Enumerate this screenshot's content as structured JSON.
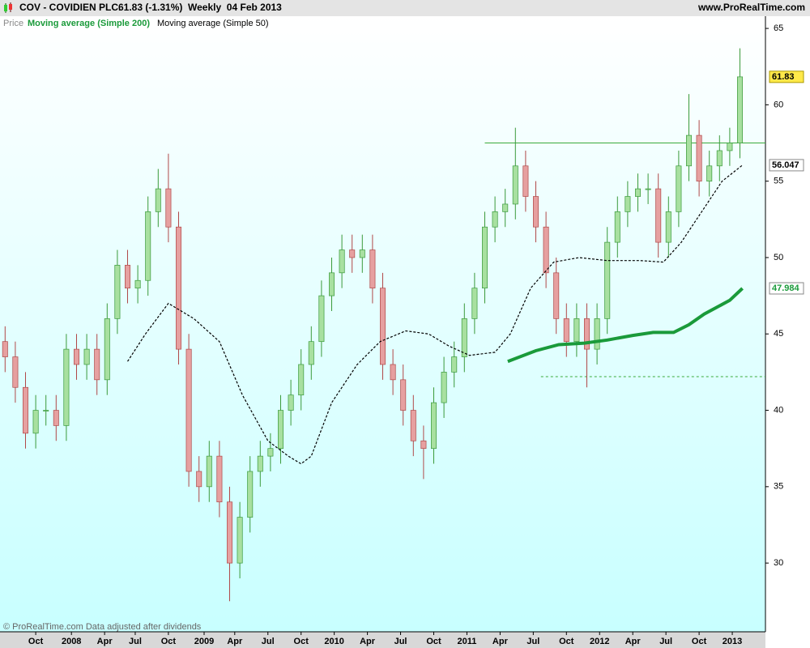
{
  "chart_data": {
    "type": "candlestick",
    "symbol": "COV - COVIDIEN PLC.",
    "quote": "61.83 (-1.31%)",
    "period": "Weekly  04 Feb 2013",
    "site": "www.ProRealTime.com",
    "price_label": "Price",
    "footer": "© ProRealTime.com Data adjusted after dividends",
    "up_color": "#a8e0a0",
    "down_color": "#e6a0a0",
    "up_edge": "#3a9a3a",
    "down_edge": "#b04848",
    "xlim": [
      0,
      300
    ],
    "ylim": [
      25.5,
      65.8
    ],
    "yticks": [
      30,
      35,
      40,
      45,
      50,
      55,
      60,
      65
    ],
    "xticks": [
      {
        "value": 14,
        "label": "Oct"
      },
      {
        "value": 28,
        "label": "2008"
      },
      {
        "value": 41,
        "label": "Apr"
      },
      {
        "value": 53,
        "label": "Jul"
      },
      {
        "value": 66,
        "label": "Oct"
      },
      {
        "value": 80,
        "label": "2009"
      },
      {
        "value": 92,
        "label": "Apr"
      },
      {
        "value": 105,
        "label": "Jul"
      },
      {
        "value": 118,
        "label": "Oct"
      },
      {
        "value": 131,
        "label": "2010"
      },
      {
        "value": 144,
        "label": "Apr"
      },
      {
        "value": 157,
        "label": "Jul"
      },
      {
        "value": 170,
        "label": "Oct"
      },
      {
        "value": 183,
        "label": "2011"
      },
      {
        "value": 196,
        "label": "Apr"
      },
      {
        "value": 209,
        "label": "Jul"
      },
      {
        "value": 222,
        "label": "Oct"
      },
      {
        "value": 235,
        "label": "2012"
      },
      {
        "value": 248,
        "label": "Apr"
      },
      {
        "value": 261,
        "label": "Jul"
      },
      {
        "value": 274,
        "label": "Oct"
      },
      {
        "value": 287,
        "label": "2013"
      }
    ],
    "x": [
      2,
      6,
      10,
      14,
      18,
      22,
      26,
      30,
      34,
      38,
      42,
      46,
      50,
      54,
      58,
      62,
      66,
      70,
      74,
      78,
      82,
      86,
      90,
      94,
      98,
      102,
      106,
      110,
      114,
      118,
      122,
      126,
      130,
      134,
      138,
      142,
      146,
      150,
      154,
      158,
      162,
      166,
      170,
      174,
      178,
      182,
      186,
      190,
      194,
      198,
      202,
      206,
      210,
      214,
      218,
      222,
      226,
      230,
      234,
      238,
      242,
      246,
      250,
      254,
      258,
      262,
      266,
      270,
      274,
      278,
      282,
      286,
      290
    ],
    "open": [
      44.5,
      43.5,
      41.5,
      38.5,
      40,
      40,
      39,
      44,
      43,
      44,
      42,
      46,
      49.5,
      48,
      48.5,
      53,
      54.5,
      52,
      44,
      36,
      35,
      37,
      34,
      30,
      33,
      36,
      37,
      37.5,
      40,
      41,
      43,
      44.5,
      47.5,
      49,
      50.5,
      50,
      50.5,
      48,
      43,
      42,
      40,
      38,
      37.5,
      40.5,
      42.5,
      43.5,
      46,
      48,
      52,
      53,
      53.5,
      56,
      54,
      52,
      49,
      46,
      44.5,
      46,
      44,
      46,
      51,
      53,
      54,
      54.5,
      54.5,
      51,
      53,
      56,
      58,
      55,
      56,
      57,
      57.5
    ],
    "high": [
      45.5,
      44.5,
      42.5,
      41,
      41,
      41,
      45,
      45,
      45,
      45,
      47,
      50.5,
      50.5,
      49.5,
      54,
      55.8,
      56.8,
      53,
      45,
      37,
      38,
      38,
      35,
      34,
      37,
      38,
      38.5,
      41,
      42,
      44,
      45.5,
      48.5,
      50,
      51.5,
      51.5,
      51.5,
      51.5,
      49,
      44,
      43,
      41,
      39,
      41.5,
      43.5,
      44.5,
      47,
      49,
      53,
      54,
      54.5,
      58.5,
      57,
      55,
      53,
      50,
      47,
      47,
      47,
      47,
      52,
      54,
      55,
      55.5,
      55.5,
      55.5,
      54,
      57,
      60.7,
      59,
      57,
      58,
      58.5,
      63.7
    ],
    "low": [
      42.5,
      40.5,
      37.5,
      37.5,
      39,
      38,
      38,
      42,
      42,
      41,
      41,
      45,
      47,
      47,
      47.5,
      52,
      51,
      43,
      35,
      34,
      34,
      33,
      27.5,
      29,
      32,
      35,
      36,
      36.5,
      39,
      40,
      42,
      43.5,
      46.5,
      48,
      49,
      49,
      47,
      42,
      41,
      39,
      37,
      35.5,
      36.5,
      39.5,
      41.5,
      42.5,
      45,
      47,
      51,
      52,
      52.5,
      53,
      51,
      48,
      45,
      43.5,
      43.5,
      41.5,
      43,
      45,
      50,
      52,
      53,
      53.5,
      50,
      50,
      52,
      55,
      54,
      54,
      55,
      56,
      56.5
    ],
    "close": [
      43.5,
      41.5,
      38.5,
      40,
      40,
      39,
      44,
      43,
      44,
      42,
      46,
      49.5,
      48,
      48.5,
      53,
      54.5,
      52,
      44,
      36,
      35,
      37,
      34,
      30,
      33,
      36,
      37,
      37.5,
      40,
      41,
      43,
      44.5,
      47.5,
      49,
      50.5,
      50,
      50.5,
      48,
      43,
      42,
      40,
      38,
      37.5,
      40.5,
      42.5,
      43.5,
      46,
      48,
      52,
      53,
      53.5,
      56,
      54,
      52,
      49,
      46,
      44.5,
      46,
      44,
      46,
      51,
      53,
      54,
      54.5,
      54.5,
      51,
      53,
      56,
      58,
      55,
      56,
      57,
      57.5,
      61.83
    ],
    "moving_averages": [
      {
        "name": "Moving average (Simple 200)",
        "color": "#1a9a3a",
        "width": 4,
        "dashed": false,
        "x": [
          199,
          210,
          219,
          229,
          238,
          248,
          256,
          264,
          270,
          276,
          286,
          291
        ],
        "values": [
          43.2,
          43.9,
          44.3,
          44.4,
          44.6,
          44.9,
          45.1,
          45.1,
          45.6,
          46.3,
          47.2,
          47.984
        ]
      },
      {
        "name": "Moving average (Simple 50)",
        "color": "#000000",
        "width": 1.2,
        "dashed": true,
        "x": [
          50,
          57,
          66,
          76,
          86,
          95,
          105,
          113,
          118,
          122,
          130,
          140,
          149,
          159,
          168,
          176,
          184,
          194,
          200,
          208,
          217,
          227,
          238,
          251,
          260,
          267,
          275,
          283,
          291
        ],
        "values": [
          43.2,
          45,
          47,
          46,
          44.5,
          41,
          38,
          37,
          36.5,
          37,
          40.5,
          43,
          44.5,
          45.2,
          45,
          44.2,
          43.6,
          43.8,
          45,
          48,
          49.7,
          50,
          49.8,
          49.8,
          49.7,
          51,
          53,
          55,
          56.047
        ]
      }
    ],
    "hlines": [
      {
        "value": 57.5,
        "from": 190,
        "color": "#3aaa3a",
        "dashed": false
      },
      {
        "value": 42.2,
        "from": 212,
        "color": "#3aaa3a",
        "dashed": true
      }
    ]
  }
}
